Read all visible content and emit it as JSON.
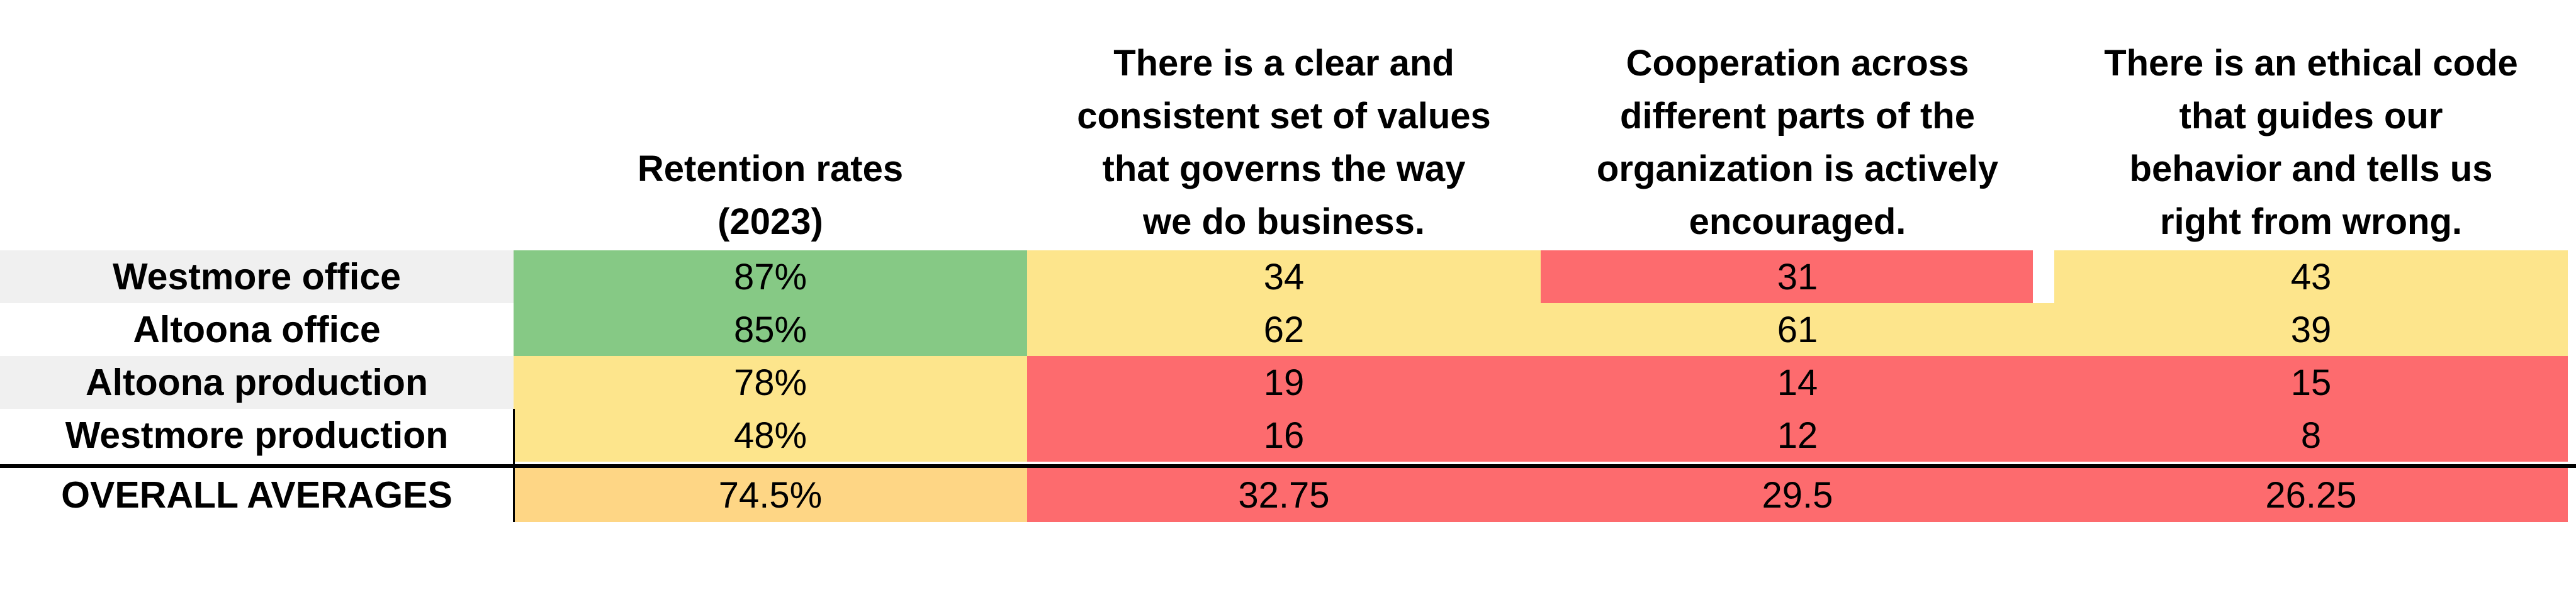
{
  "chart_data": {
    "type": "table",
    "columns": [
      "Retention rates\n(2023)",
      "There is a clear and\nconsistent set of values\nthat governs the way\nwe do business.",
      "Cooperation across\ndifferent parts of the\norganization is actively\nencouraged.",
      "There is an ethical code\nthat guides our\nbehavior and tells us\nright from wrong."
    ],
    "rows": [
      {
        "label": "Westmore office",
        "values": [
          "87%",
          "34",
          "31",
          "43"
        ]
      },
      {
        "label": "Altoona office",
        "values": [
          "85%",
          "62",
          "61",
          "39"
        ]
      },
      {
        "label": "Altoona production",
        "values": [
          "78%",
          "19",
          "14",
          "15"
        ]
      },
      {
        "label": "Westmore production",
        "values": [
          "48%",
          "16",
          "12",
          "8"
        ]
      }
    ],
    "averages": {
      "label": "OVERALL AVERAGES",
      "values": [
        "74.5%",
        "32.75",
        "29.5",
        "26.25"
      ]
    },
    "cell_colors": [
      [
        "#86c985",
        "#fde58c",
        "#fd6b6e",
        "#fde58c"
      ],
      [
        "#86c985",
        "#fde58c",
        "#fde58c",
        "#fde58c"
      ],
      [
        "#fde58c",
        "#fd6b6e",
        "#fd6b6e",
        "#fd6b6e"
      ],
      [
        "#fde58c",
        "#fd6b6e",
        "#fd6b6e",
        "#fd6b6e"
      ],
      [
        "#fed685",
        "#fd6b6e",
        "#fd6b6e",
        "#fd6b6e"
      ]
    ]
  }
}
